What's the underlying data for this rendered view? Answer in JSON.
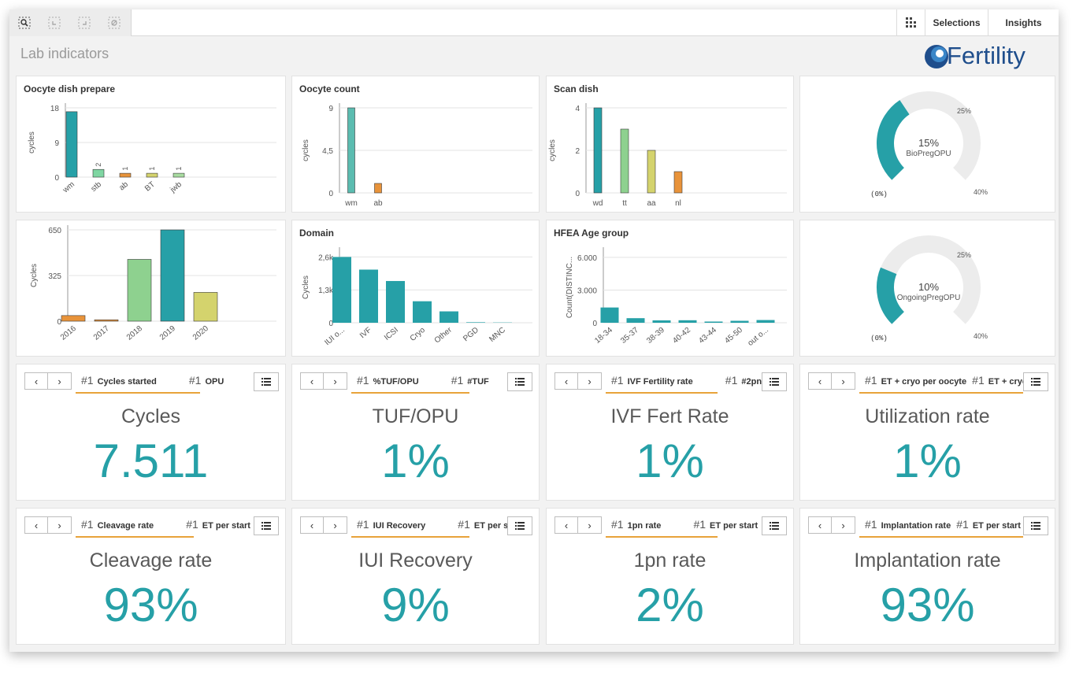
{
  "toolbar": {
    "selections_label": "Selections",
    "insights_label": "Insights",
    "icons": [
      "smart-search-icon",
      "step-back-icon",
      "step-forward-icon",
      "clear-selections-icon",
      "grid-icon"
    ]
  },
  "sheet": {
    "title": "Lab indicators"
  },
  "logo": {
    "text": "Fertility"
  },
  "colors": {
    "teal": "#26a0a7",
    "orange": "#e8933a",
    "green": "#8ed18f",
    "yellow": "#d4d36d",
    "light_teal": "#7fcfc0",
    "underline": "#e8a33a",
    "kpi_value": "#26a0a7"
  },
  "charts": {
    "oocyte_dish": {
      "title": "Oocyte dish prepare",
      "ylabel": "cycles",
      "yticks": [
        "18",
        "9",
        "0"
      ],
      "chart_data": {
        "type": "bar",
        "categories": [
          "wm",
          "stb",
          "ab",
          "BT",
          "jwb"
        ],
        "values": [
          17,
          2,
          1,
          1,
          1
        ],
        "ylim": [
          0,
          18
        ],
        "value_labels": [
          "",
          "2",
          "1",
          "1",
          "1"
        ],
        "colors": [
          "#26a0a7",
          "#7fd6a2",
          "#e8933a",
          "#d4d36d",
          "#a8dca0"
        ]
      }
    },
    "oocyte_count": {
      "title": "Oocyte count",
      "ylabel": "cycles",
      "yticks": [
        "9",
        "4,5",
        "0"
      ],
      "chart_data": {
        "type": "bar",
        "categories": [
          "wm",
          "ab"
        ],
        "values": [
          9,
          1
        ],
        "ylim": [
          0,
          9
        ],
        "colors": [
          "#5bbcb0",
          "#e8933a"
        ]
      }
    },
    "scan_dish": {
      "title": "Scan dish",
      "ylabel": "cycles",
      "yticks": [
        "4",
        "2",
        "0"
      ],
      "chart_data": {
        "type": "bar",
        "categories": [
          "wd",
          "tt",
          "aa",
          "nl"
        ],
        "values": [
          4,
          3,
          2,
          1
        ],
        "ylim": [
          0,
          4
        ],
        "colors": [
          "#26a0a7",
          "#8ed18f",
          "#d4d36d",
          "#e8933a"
        ]
      }
    },
    "gauge_bio": {
      "value_text": "15%",
      "measure": "BioPregOPU",
      "min_label": "(0%)",
      "mid_label": "25%",
      "max_label": "40%",
      "chart_data": {
        "type": "gauge",
        "value": 15,
        "min": 0,
        "max": 40
      }
    },
    "cycles_year": {
      "ylabel": "Cycles",
      "yticks": [
        "650",
        "325",
        "0"
      ],
      "chart_data": {
        "type": "bar",
        "categories": [
          "2016",
          "2017",
          "2018",
          "2019",
          "2020"
        ],
        "values": [
          40,
          10,
          440,
          650,
          205
        ],
        "ylim": [
          0,
          650
        ],
        "colors": [
          "#e8933a",
          "#e8933a",
          "#8ed18f",
          "#26a0a7",
          "#d4d36d"
        ]
      }
    },
    "domain": {
      "title": "Domain",
      "ylabel": "Cycles",
      "yticks": [
        "2,6k",
        "1,3k",
        "0"
      ],
      "chart_data": {
        "type": "bar",
        "categories": [
          "IUI o...",
          "IVF",
          "ICSI",
          "Cryo",
          "Other",
          "PGD",
          "MNC"
        ],
        "values": [
          2600,
          2100,
          1650,
          850,
          450,
          20,
          10
        ],
        "ylim": [
          0,
          2800
        ]
      }
    },
    "hfea_age": {
      "title": "HFEA Age group",
      "ylabel": "Count(DISTINC...",
      "yticks": [
        "6.000",
        "3.000",
        "0"
      ],
      "chart_data": {
        "type": "bar",
        "categories": [
          "18-34",
          "35-37",
          "38-39",
          "40-42",
          "43-44",
          "45-50",
          "out o..."
        ],
        "values": [
          1400,
          420,
          220,
          230,
          110,
          180,
          250
        ],
        "ylim": [
          0,
          6500
        ]
      }
    },
    "gauge_ongoing": {
      "value_text": "10%",
      "measure": "OngoingPregOPU",
      "min_label": "(0%)",
      "mid_label": "25%",
      "max_label": "40%",
      "chart_data": {
        "type": "gauge",
        "value": 10,
        "min": 0,
        "max": 40
      }
    }
  },
  "kpis": [
    {
      "tab1": "Cycles started",
      "tab2": "OPU",
      "label": "Cycles",
      "value": "7.511"
    },
    {
      "tab1": "%TUF/OPU",
      "tab2": "#TUF",
      "label": "TUF/OPU",
      "value": "1%"
    },
    {
      "tab1": "IVF Fertility rate",
      "tab2": "#2pn",
      "label": "IVF Fert Rate",
      "value": "1%"
    },
    {
      "tab1": "ET + cryo per oocyte",
      "tab2": "ET + cryo",
      "label": "Utilization rate",
      "value": "1%"
    },
    {
      "tab1": "Cleavage rate",
      "tab2": "ET per start",
      "label": "Cleavage rate",
      "value": "93%"
    },
    {
      "tab1": "IUI Recovery",
      "tab2": "ET per start",
      "label": "IUI Recovery",
      "value": "9%"
    },
    {
      "tab1": "1pn rate",
      "tab2": "ET per start",
      "label": "1pn rate",
      "value": "2%"
    },
    {
      "tab1": "Implantation rate",
      "tab2": "ET per start",
      "label": "Implantation rate",
      "value": "93%"
    }
  ],
  "kpi_common": {
    "hash": "#1",
    "prev": "‹",
    "next": "›"
  }
}
